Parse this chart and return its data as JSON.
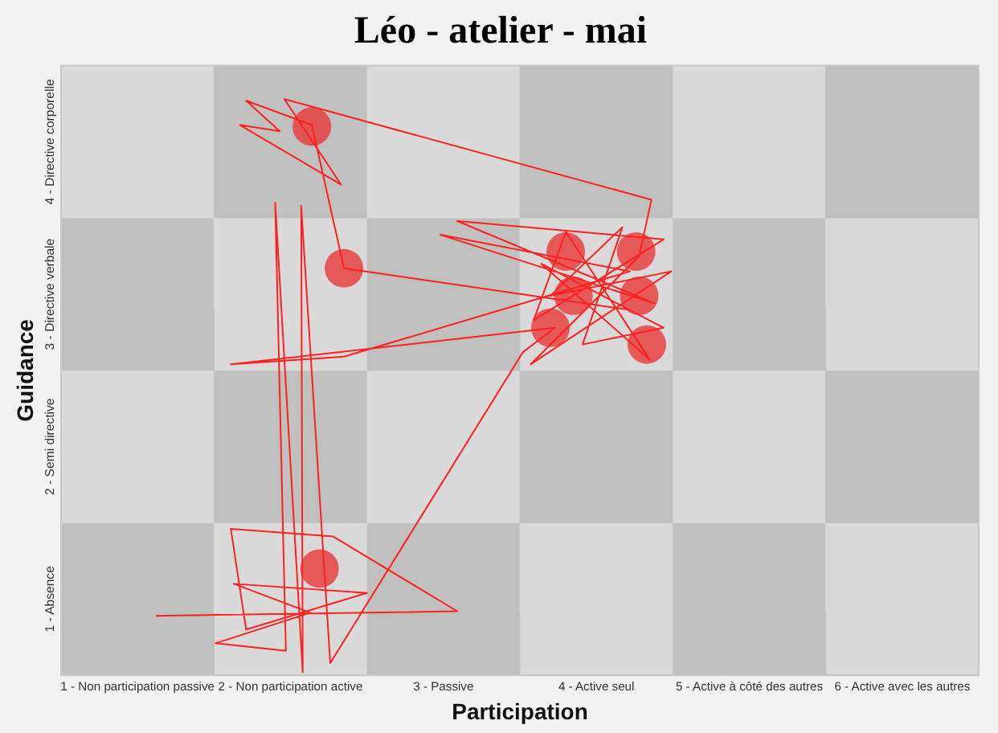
{
  "chart_data": {
    "type": "line",
    "title": "Léo - atelier - mai",
    "xlabel": "Participation",
    "ylabel": "Guidance",
    "xlim": [
      0.5,
      6.5
    ],
    "ylim": [
      0.5,
      4.5
    ],
    "xticks": [
      {
        "value": 1,
        "label": "1 - Non participation passive"
      },
      {
        "value": 2,
        "label": "2 - Non participation active"
      },
      {
        "value": 3,
        "label": "3 - Passive"
      },
      {
        "value": 4,
        "label": "4 - Active seul"
      },
      {
        "value": 5,
        "label": "5 - Active à côté des autres"
      },
      {
        "value": 6,
        "label": "6 - Active avec les autres"
      }
    ],
    "yticks": [
      {
        "value": 1,
        "label": "1 - Absence"
      },
      {
        "value": 2,
        "label": "2 - Semi directive"
      },
      {
        "value": 3,
        "label": "3 - Directive verbale"
      },
      {
        "value": 4,
        "label": "4 - Directive corporelle"
      }
    ],
    "grid": false,
    "legend": false,
    "line_style": "solid",
    "series": [
      {
        "marker": "none",
        "color": "#ff2020",
        "x": [
          1.12,
          3.09,
          2.28,
          1.61,
          1.71,
          2.5,
          1.63,
          2.13,
          1.51,
          1.97,
          1.9,
          2.08,
          2.07,
          2.26,
          3.52,
          3.73,
          1.61,
          2.35,
          4.22,
          2.98,
          4.38,
          3.09,
          4.44,
          3.59,
          3.8,
          4.35,
          3.64,
          4.44,
          3.91,
          4.17,
          3.7,
          4.49,
          3.57,
          4.28,
          4.36,
          1.96,
          2.33,
          1.67,
          1.93,
          1.71,
          2.14,
          2.35,
          4.2
        ],
        "values": [
          0.89,
          0.92,
          1.41,
          1.46,
          0.8,
          1.04,
          1.1,
          0.91,
          0.71,
          0.66,
          3.6,
          0.52,
          3.58,
          0.58,
          2.62,
          2.78,
          2.54,
          2.59,
          3.15,
          3.39,
          2.94,
          3.48,
          3.36,
          2.83,
          3.41,
          2.57,
          3.2,
          2.78,
          2.67,
          3.44,
          2.99,
          3.15,
          2.54,
          3.25,
          3.62,
          4.28,
          3.72,
          4.11,
          4.07,
          4.27,
          4.11,
          3.17,
          2.9
        ]
      },
      {
        "type": "bubble",
        "marker": "circle",
        "color": "#e83838",
        "x": [
          2.14,
          2.35,
          2.19,
          3.8,
          4.26,
          4.28,
          3.85,
          3.7,
          4.33
        ],
        "values": [
          4.1,
          3.17,
          1.2,
          3.28,
          3.28,
          2.99,
          2.99,
          2.78,
          2.67
        ],
        "sizes": [
          1,
          1,
          1,
          1,
          1,
          1,
          1,
          1,
          1
        ]
      }
    ]
  }
}
